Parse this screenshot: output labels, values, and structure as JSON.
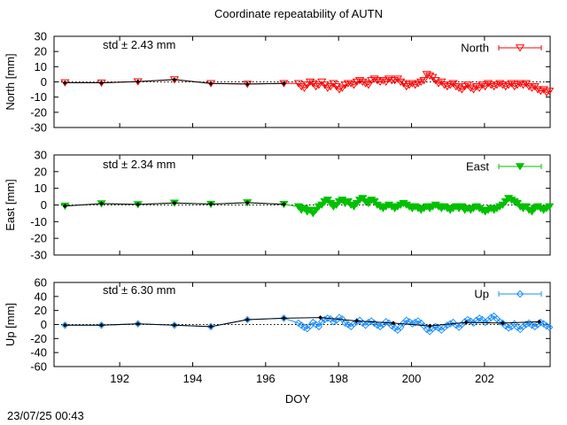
{
  "title": "Coordinate repeatability of AUTN",
  "timestamp": "23/07/25 00:43",
  "colors": {
    "north": "#ff0000",
    "east": "#00c000",
    "up": "#1e90ff",
    "reference": "#000000"
  },
  "chart_data": {
    "type": "scatter",
    "title": "Coordinate repeatability of AUTN",
    "xlabel": "DOY",
    "xlim": [
      190.2,
      203.8
    ],
    "xticks": [
      "192",
      "194",
      "196",
      "198",
      "200",
      "202"
    ],
    "grid": false,
    "legend_placement": "top-right",
    "panels": [
      {
        "key": "north",
        "ylabel": "North [mm]",
        "ylim": [
          -30,
          30
        ],
        "yticks": [
          "30",
          "20",
          "10",
          "0",
          "-10",
          "-20",
          "-30"
        ],
        "std_label": "std ± 2.43 mm",
        "legend": "North",
        "marker": "triangle-down-open",
        "daily": {
          "x": [
            190.5,
            191.5,
            192.5,
            193.5,
            194.5,
            195.5,
            196.5
          ],
          "y": [
            -0.5,
            -0.6,
            0.2,
            1.5,
            -1.0,
            -1.4,
            -1.0
          ]
        },
        "hourly_start": 196.9,
        "hourly_end": 203.8,
        "hourly_step": 0.08,
        "hourly_y": [
          -1,
          -3,
          -4,
          -2,
          0,
          -1,
          -3,
          -2,
          0,
          -2,
          -4,
          -3,
          -1,
          -3,
          -5,
          -4,
          -2,
          -1,
          -1,
          -2,
          0,
          1,
          0,
          -1,
          -2,
          1,
          2,
          1,
          0,
          1,
          0,
          2,
          1,
          1,
          2,
          0,
          -1,
          -3,
          -2,
          -1,
          -2,
          -1,
          0,
          1,
          5,
          4,
          3,
          1,
          -1,
          0,
          -2,
          -3,
          -2,
          -1,
          -3,
          -4,
          -5,
          -3,
          -2,
          -4,
          -5,
          -3,
          -4,
          -2,
          -3,
          -1,
          -2,
          -3,
          -2,
          -1,
          -2,
          -3,
          -2,
          -1,
          -3,
          -2,
          -1,
          -2,
          -1,
          -3,
          -4,
          -3,
          -5,
          -6,
          -5,
          -7,
          -6,
          -5,
          -3,
          -2,
          -3,
          -2,
          -1,
          -2,
          -3,
          -1,
          -2,
          -3,
          -2
        ]
      },
      {
        "key": "east",
        "ylabel": "East [mm]",
        "ylim": [
          -30,
          30
        ],
        "yticks": [
          "30",
          "20",
          "10",
          "0",
          "-10",
          "-20",
          "-30"
        ],
        "std_label": "std ± 2.34 mm",
        "legend": "East",
        "marker": "triangle-down-filled",
        "daily": {
          "x": [
            190.5,
            191.5,
            192.5,
            193.5,
            194.5,
            195.5,
            196.5
          ],
          "y": [
            -0.6,
            0.8,
            0.3,
            1.2,
            0.5,
            1.4,
            0.4
          ]
        },
        "hourly_start": 196.9,
        "hourly_end": 203.8,
        "hourly_step": 0.08,
        "hourly_y": [
          -1,
          -3,
          -2,
          -4,
          -3,
          -5,
          -3,
          -1,
          0,
          2,
          3,
          1,
          -1,
          0,
          2,
          3,
          1,
          2,
          0,
          -1,
          1,
          3,
          4,
          2,
          1,
          3,
          2,
          0,
          -1,
          -2,
          -1,
          0,
          -1,
          -2,
          -1,
          0,
          1,
          0,
          -1,
          -2,
          -1,
          -2,
          -3,
          -2,
          -1,
          -2,
          -1,
          0,
          -1,
          -2,
          -1,
          -2,
          -3,
          -2,
          -1,
          -2,
          -1,
          -3,
          -2,
          -3,
          -2,
          -1,
          -2,
          -3,
          -4,
          -3,
          -2,
          -3,
          -2,
          -1,
          0,
          2,
          4,
          3,
          2,
          1,
          -1,
          -2,
          -1,
          -3,
          -4,
          -2,
          -1,
          -2,
          -3,
          -2,
          -1,
          -2,
          -4,
          -3,
          -2,
          -3,
          -1,
          -2,
          -1,
          -2,
          -3,
          -1,
          -2
        ]
      },
      {
        "key": "up",
        "ylabel": "Up [mm]",
        "ylim": [
          -60,
          60
        ],
        "yticks": [
          "60",
          "40",
          "20",
          "0",
          "-20",
          "-40",
          "-60"
        ],
        "std_label": "std ± 6.30 mm",
        "legend": "Up",
        "marker": "diamond-open",
        "daily": {
          "x": [
            190.5,
            191.5,
            192.5,
            193.5,
            194.5,
            195.5,
            196.5,
            197.5,
            198.5,
            199.5,
            200.5,
            201.5,
            202.5,
            203.5
          ],
          "y": [
            -1,
            -1,
            1,
            -1,
            -3,
            7,
            9,
            10,
            5,
            2,
            -2,
            3,
            2,
            4
          ]
        },
        "hourly_start": 196.9,
        "hourly_end": 203.8,
        "hourly_step": 0.08,
        "hourly_y": [
          2,
          -1,
          -4,
          -6,
          -2,
          3,
          0,
          -3,
          4,
          7,
          9,
          8,
          4,
          6,
          10,
          8,
          2,
          0,
          -3,
          1,
          4,
          6,
          2,
          -1,
          3,
          5,
          2,
          -1,
          -3,
          0,
          4,
          2,
          -2,
          -5,
          -8,
          -4,
          2,
          6,
          4,
          1,
          3,
          5,
          2,
          -2,
          -7,
          -10,
          -6,
          -3,
          -5,
          -8,
          -4,
          -1,
          1,
          3,
          -1,
          -4,
          0,
          4,
          7,
          5,
          2,
          6,
          9,
          7,
          3,
          6,
          10,
          12,
          8,
          4,
          2,
          -2,
          -5,
          -3,
          1,
          -4,
          -7,
          -3,
          0,
          2,
          -1,
          -3,
          0,
          3,
          1,
          -2,
          -4,
          -1,
          2,
          5,
          3,
          0,
          -2,
          -4,
          -1,
          2,
          0,
          -3,
          -1
        ]
      }
    ]
  }
}
